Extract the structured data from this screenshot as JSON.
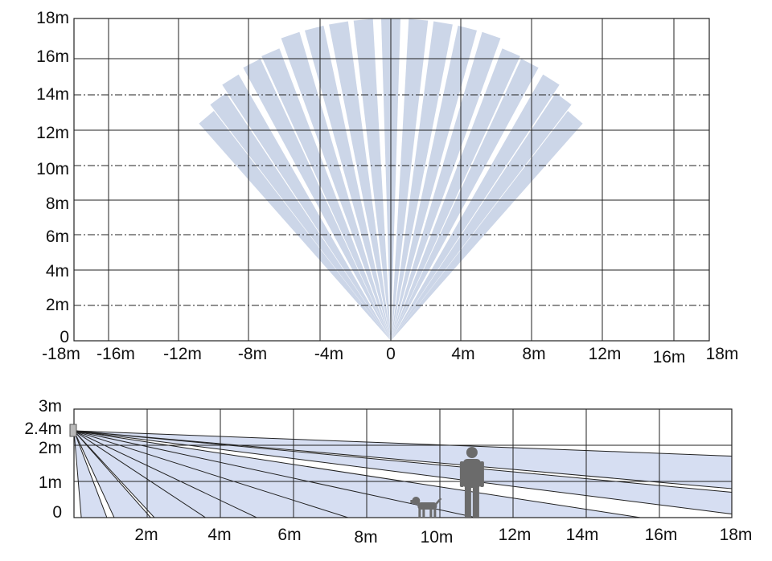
{
  "colors": {
    "beam": "#ccd6e8",
    "beam_side": "#d6def2",
    "grid": "#222222",
    "figure": "#6b6b6b",
    "sensor": "#b9b9b9"
  },
  "top_view": {
    "y_labels": [
      "18m",
      "16m",
      "14m",
      "12m",
      "10m",
      "8m",
      "6m",
      "4m",
      "2m",
      "0"
    ],
    "x_labels": [
      "-18m",
      "-16m",
      "-12m",
      "-8m",
      "-4m",
      "0",
      "4m",
      "8m",
      "12m",
      "16m",
      "18m"
    ],
    "beams": [
      {
        "angle_deg": -40,
        "range_m": 16.3
      },
      {
        "angle_deg": -36,
        "range_m": 16.7
      },
      {
        "angle_deg": -32,
        "range_m": 17.2
      },
      {
        "angle_deg": -27,
        "range_m": 17.4
      },
      {
        "angle_deg": -23,
        "range_m": 17.5
      },
      {
        "angle_deg": -18.5,
        "range_m": 18
      },
      {
        "angle_deg": -14,
        "range_m": 18
      },
      {
        "angle_deg": -9.5,
        "range_m": 18
      },
      {
        "angle_deg": -5,
        "range_m": 18
      },
      {
        "angle_deg": 0,
        "range_m": 18
      },
      {
        "angle_deg": 5,
        "range_m": 18
      },
      {
        "angle_deg": 9.5,
        "range_m": 18
      },
      {
        "angle_deg": 14,
        "range_m": 18
      },
      {
        "angle_deg": 18.5,
        "range_m": 18
      },
      {
        "angle_deg": 23,
        "range_m": 17.5
      },
      {
        "angle_deg": 27,
        "range_m": 17.4
      },
      {
        "angle_deg": 32,
        "range_m": 17.2
      },
      {
        "angle_deg": 36,
        "range_m": 16.7
      },
      {
        "angle_deg": 40,
        "range_m": 16.3
      }
    ]
  },
  "side_view": {
    "y_labels": [
      "3m",
      "2.4m",
      "2m",
      "1m",
      "0"
    ],
    "x_labels": [
      "2m",
      "4m",
      "6m",
      "8m",
      "10m",
      "12m",
      "14m",
      "16m",
      "18m"
    ],
    "mount_height_m": 2.4,
    "beams": [
      {
        "x1_m": 0.2,
        "x2_m": 0.9
      },
      {
        "x1_m": 1.1,
        "x2_m": 2.1
      },
      {
        "x1_m": 2.2,
        "x2_m": 3.7
      },
      {
        "x1_m": 3.6,
        "x2_m": 6.0
      },
      {
        "x1_m": 5.0,
        "x2_m": 8.2
      },
      {
        "x1_m": 7.5,
        "x2_m": 11.5
      },
      {
        "x1_m": 11.0,
        "x2_m": 15.5
      },
      {
        "x1_m": 18.0,
        "x2_m": 18.0,
        "far_top_m": 0.7,
        "far_bottom_m": 0.1
      },
      {
        "x1_m": 18.0,
        "x2_m": 18.0,
        "far_top_m": 1.7,
        "far_bottom_m": 0.8
      }
    ],
    "person_at_m": 11,
    "dog_at_m": 9.8
  }
}
